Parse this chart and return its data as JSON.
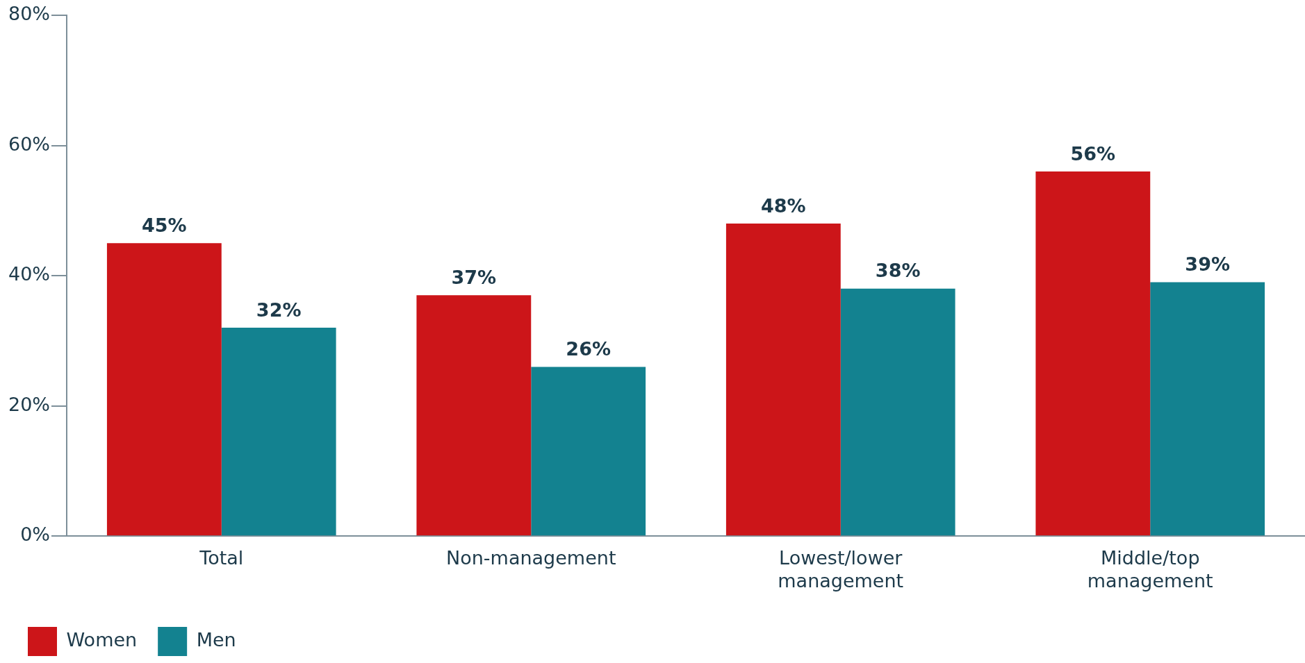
{
  "chart_data": {
    "type": "bar",
    "categories": [
      "Total",
      "Non-management",
      "Lowest/lower management",
      "Middle/top management"
    ],
    "series": [
      {
        "name": "Women",
        "color": "#cc1519",
        "values": [
          45,
          37,
          48,
          56
        ]
      },
      {
        "name": "Men",
        "color": "#138290",
        "values": [
          32,
          26,
          38,
          39
        ]
      }
    ],
    "ylim": [
      0,
      80
    ],
    "yticks": [
      {
        "value": 0,
        "label": "0%"
      },
      {
        "value": 20,
        "label": "20%"
      },
      {
        "value": 40,
        "label": "40%"
      },
      {
        "value": 60,
        "label": "60%"
      },
      {
        "value": 80,
        "label": "80%"
      }
    ],
    "value_labels": [
      [
        "45%",
        "37%",
        "48%",
        "56%"
      ],
      [
        "32%",
        "26%",
        "38%",
        "39%"
      ]
    ],
    "grid": false,
    "legend": "bottom left"
  }
}
